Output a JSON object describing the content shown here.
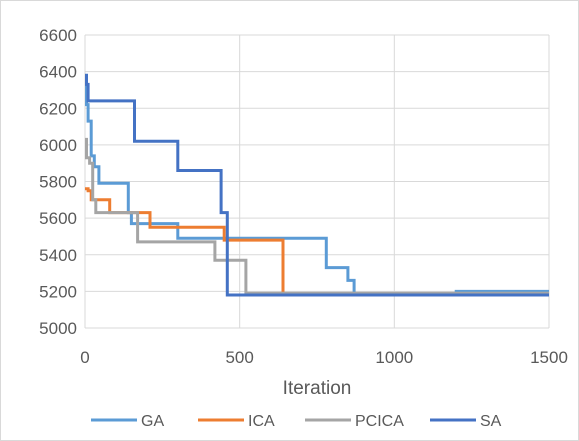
{
  "chart_data": {
    "type": "line",
    "title": "",
    "xlabel": "Iteration",
    "ylabel": "",
    "xlim": [
      0,
      1500
    ],
    "ylim": [
      5000,
      6600
    ],
    "xticks": [
      "0",
      "500",
      "1000",
      "1500"
    ],
    "yticks": [
      "5000",
      "5200",
      "5400",
      "5600",
      "5800",
      "6000",
      "6200",
      "6400",
      "6600"
    ],
    "grid": true,
    "legend": "bottom",
    "series": [
      {
        "name": "GA",
        "color": "#5b9bd5",
        "x": [
          0,
          5,
          10,
          20,
          30,
          45,
          60,
          140,
          150,
          280,
          300,
          760,
          780,
          850,
          870,
          1200,
          1500
        ],
        "y": [
          6320,
          6220,
          6130,
          5940,
          5880,
          5790,
          5790,
          5630,
          5570,
          5570,
          5490,
          5490,
          5330,
          5260,
          5180,
          5200,
          5200
        ]
      },
      {
        "name": "ICA",
        "color": "#ed7d31",
        "x": [
          0,
          10,
          20,
          60,
          80,
          190,
          210,
          440,
          450,
          620,
          640,
          1500
        ],
        "y": [
          5760,
          5750,
          5700,
          5700,
          5630,
          5630,
          5550,
          5550,
          5480,
          5480,
          5180,
          5180
        ],
        "step": true
      },
      {
        "name": "PCICA",
        "color": "#a5a5a5",
        "x": [
          0,
          5,
          15,
          25,
          35,
          160,
          170,
          410,
          420,
          510,
          520,
          1500
        ],
        "y": [
          6030,
          5930,
          5900,
          5700,
          5630,
          5630,
          5470,
          5470,
          5370,
          5370,
          5190,
          5190
        ],
        "step": true
      },
      {
        "name": "SA",
        "color": "#4472c4",
        "x": [
          0,
          5,
          10,
          150,
          160,
          290,
          300,
          430,
          440,
          450,
          460,
          1500
        ],
        "y": [
          6380,
          6330,
          6240,
          6240,
          6020,
          6020,
          5860,
          5860,
          5630,
          5630,
          5180,
          5180
        ],
        "step": true
      }
    ]
  }
}
